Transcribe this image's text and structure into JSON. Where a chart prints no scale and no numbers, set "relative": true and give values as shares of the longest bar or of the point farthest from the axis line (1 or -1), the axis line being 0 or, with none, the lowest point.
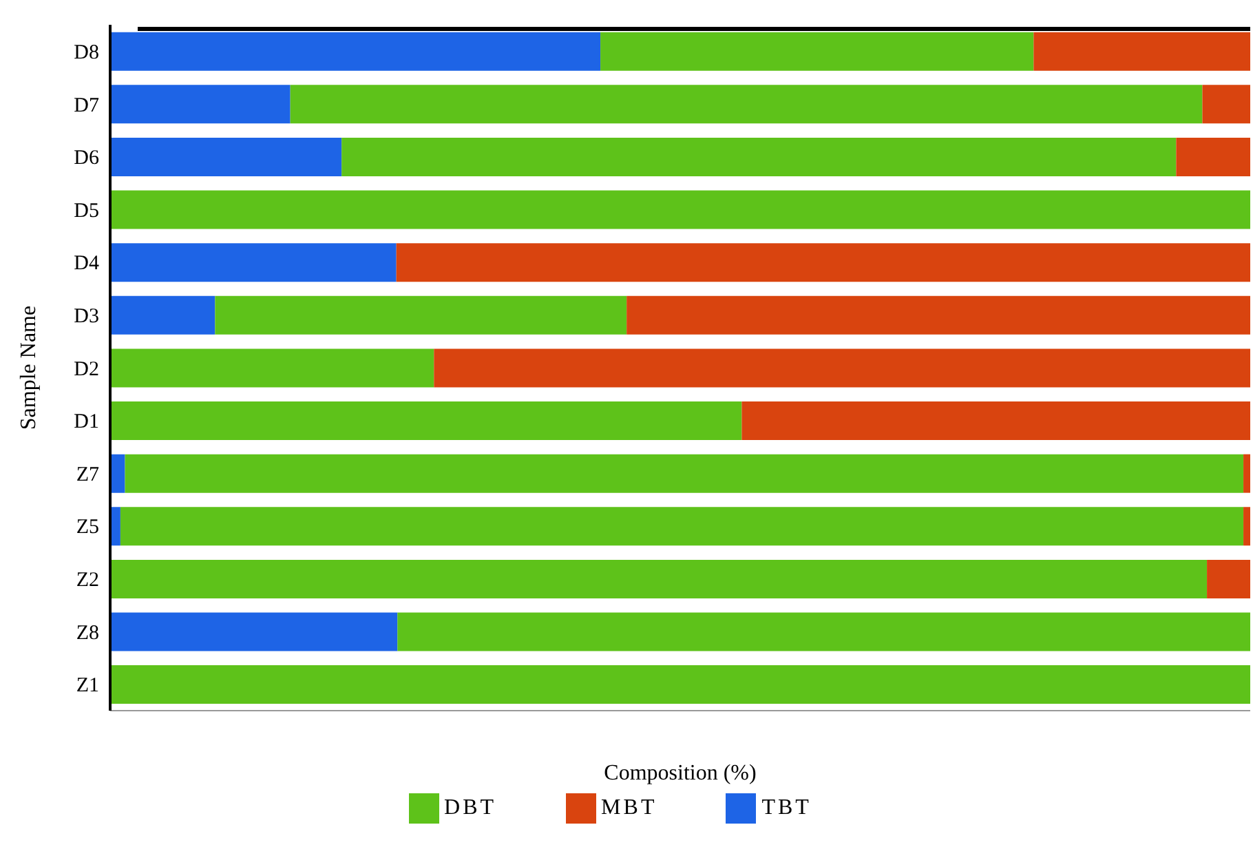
{
  "chart_data": {
    "type": "bar",
    "orientation": "horizontal",
    "stacked": true,
    "relative": true,
    "xlabel": "Composition (%)",
    "ylabel": "Sample Name",
    "categories": [
      "D8",
      "D7",
      "D6",
      "D5",
      "D4",
      "D3",
      "D2",
      "D1",
      "Z7",
      "Z5",
      "Z2",
      "Z8",
      "Z1"
    ],
    "series": [
      {
        "name": "TBT",
        "color": "#1e64e6",
        "values": [
          0.43,
          0.158,
          0.203,
          0,
          0.251,
          0.092,
          0,
          0,
          0.013,
          0.009,
          0,
          0.252,
          0
        ]
      },
      {
        "name": "DBT",
        "color": "#5ec21a",
        "values": [
          0.38,
          0.8,
          0.732,
          1,
          0,
          0.361,
          0.284,
          0.554,
          0.981,
          0.985,
          0.962,
          0.748,
          1
        ]
      },
      {
        "name": "MBT",
        "color": "#d9440f",
        "values": [
          0.19,
          0.042,
          0.065,
          0,
          0.749,
          0.547,
          0.716,
          0.446,
          0.006,
          0.006,
          0.038,
          0,
          0
        ]
      }
    ],
    "grid": false,
    "legend": "bottom"
  }
}
